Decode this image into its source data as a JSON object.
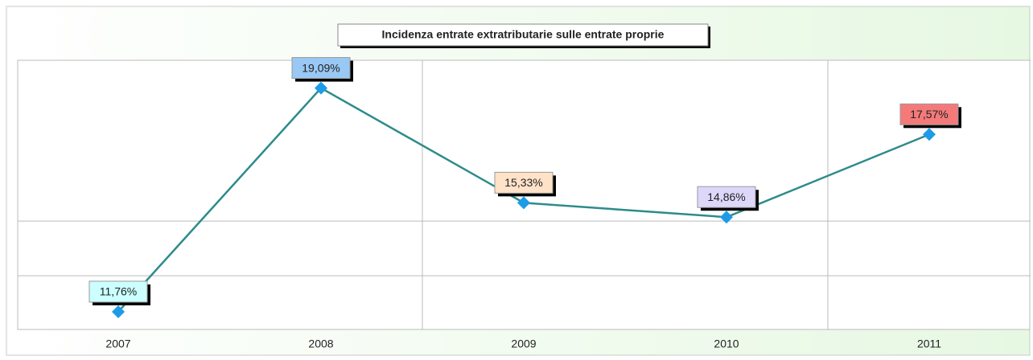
{
  "chart_data": {
    "type": "line",
    "title": "Incidenza entrate extratributarie sulle entrate proprie",
    "categories": [
      "2007",
      "2008",
      "2009",
      "2010",
      "2011"
    ],
    "series": [
      {
        "values": [
          11.76,
          19.09,
          15.33,
          14.86,
          17.57
        ],
        "value_labels": [
          "11,76%",
          "19,09%",
          "15,33%",
          "14,86%",
          "17,57%"
        ],
        "color": "#2e8b8b",
        "marker_color": "#1e9be6",
        "label_colors": [
          "#ccffff",
          "#99c8f5",
          "#ffe2c8",
          "#ddd8fa",
          "#f47a7a"
        ]
      }
    ],
    "ylim": [
      11.18,
      20
    ],
    "yticks": [
      12.94,
      14.73,
      20
    ],
    "grid": true
  }
}
